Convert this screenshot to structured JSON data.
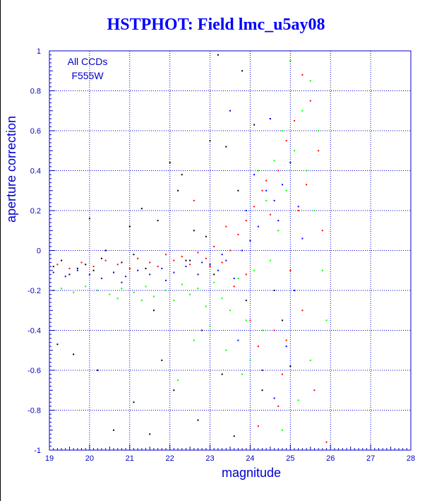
{
  "chart_data": {
    "type": "scatter",
    "title": "HSTPHOT: Field lmc_u5ay08",
    "xlabel": "magnitude",
    "ylabel": "aperture correction",
    "xlim": [
      19,
      28
    ],
    "ylim": [
      -1,
      1
    ],
    "x_ticks": [
      "19",
      "20",
      "21",
      "22",
      "23",
      "24",
      "25",
      "26",
      "27",
      "28"
    ],
    "y_ticks": [
      "-1",
      "-0.8",
      "-0.6",
      "-0.4",
      "-0.2",
      "0",
      "0.2",
      "0.4",
      "0.6",
      "0.8",
      "1"
    ],
    "grid": true,
    "annotations": [
      "All CCDs",
      "F555W"
    ],
    "colors": {
      "axis": "#0000cc",
      "grid": "#0000cc",
      "title": "#0000ff"
    },
    "series": [
      {
        "color": "#000000",
        "points": [
          [
            19.1,
            -0.08
          ],
          [
            19.3,
            -0.05
          ],
          [
            19.5,
            -0.12
          ],
          [
            19.7,
            -0.09
          ],
          [
            19.9,
            -0.07
          ],
          [
            20.0,
            0.16
          ],
          [
            20.1,
            -0.1
          ],
          [
            20.3,
            -0.04
          ],
          [
            20.4,
            0.0
          ],
          [
            20.6,
            -0.11
          ],
          [
            20.8,
            -0.06
          ],
          [
            21.0,
            0.12
          ],
          [
            21.1,
            -0.02
          ],
          [
            21.3,
            0.21
          ],
          [
            21.4,
            -0.09
          ],
          [
            21.6,
            -0.3
          ],
          [
            21.7,
            0.15
          ],
          [
            21.8,
            -0.55
          ],
          [
            22.0,
            0.44
          ],
          [
            22.1,
            -0.7
          ],
          [
            22.2,
            0.3
          ],
          [
            22.3,
            0.38
          ],
          [
            22.4,
            -0.05
          ],
          [
            22.6,
            0.1
          ],
          [
            22.7,
            -0.85
          ],
          [
            22.8,
            -0.4
          ],
          [
            22.9,
            0.07
          ],
          [
            23.0,
            0.55
          ],
          [
            23.2,
            0.98
          ],
          [
            23.3,
            -0.62
          ],
          [
            23.4,
            0.52
          ],
          [
            23.6,
            -0.93
          ],
          [
            23.7,
            0.3
          ],
          [
            23.8,
            0.9
          ],
          [
            23.9,
            -0.25
          ],
          [
            24.1,
            0.63
          ],
          [
            24.3,
            -0.7
          ],
          [
            24.5,
            0.66
          ],
          [
            24.8,
            -0.35
          ],
          [
            25.0,
            -0.58
          ],
          [
            19.2,
            -0.47
          ],
          [
            19.6,
            -0.52
          ],
          [
            20.2,
            -0.6
          ],
          [
            20.6,
            -0.9
          ],
          [
            21.1,
            -0.76
          ],
          [
            21.5,
            -0.92
          ],
          [
            22.5,
            -0.05
          ],
          [
            23.1,
            -0.12
          ],
          [
            24.0,
            0.05
          ],
          [
            24.6,
            -0.2
          ]
        ]
      },
      {
        "color": "#ff0000",
        "points": [
          [
            19.2,
            -0.07
          ],
          [
            19.5,
            -0.09
          ],
          [
            19.8,
            -0.06
          ],
          [
            20.1,
            -0.08
          ],
          [
            20.4,
            -0.05
          ],
          [
            20.7,
            -0.07
          ],
          [
            21.0,
            -0.09
          ],
          [
            21.2,
            -0.04
          ],
          [
            21.5,
            -0.06
          ],
          [
            21.7,
            -0.08
          ],
          [
            21.9,
            -0.02
          ],
          [
            22.1,
            -0.05
          ],
          [
            22.3,
            -0.03
          ],
          [
            22.5,
            -0.07
          ],
          [
            22.7,
            -0.01
          ],
          [
            22.9,
            -0.04
          ],
          [
            23.1,
            0.02
          ],
          [
            23.3,
            -0.06
          ],
          [
            23.5,
            0.0
          ],
          [
            23.7,
            0.08
          ],
          [
            23.9,
            0.15
          ],
          [
            24.1,
            0.22
          ],
          [
            24.3,
            0.3
          ],
          [
            24.5,
            0.18
          ],
          [
            24.7,
            0.4
          ],
          [
            24.9,
            0.55
          ],
          [
            25.1,
            0.65
          ],
          [
            25.3,
            0.88
          ],
          [
            25.5,
            0.75
          ],
          [
            25.7,
            0.5
          ],
          [
            23.6,
            -0.18
          ],
          [
            24.0,
            -0.35
          ],
          [
            24.2,
            -0.48
          ],
          [
            24.6,
            -0.4
          ],
          [
            24.8,
            -0.62
          ],
          [
            25.0,
            -0.1
          ],
          [
            25.2,
            0.2
          ],
          [
            25.4,
            0.33
          ],
          [
            25.8,
            0.1
          ],
          [
            25.9,
            -0.96
          ],
          [
            24.4,
            0.35
          ],
          [
            23.9,
            -0.12
          ],
          [
            23.4,
            0.12
          ],
          [
            23.0,
            -0.08
          ],
          [
            22.6,
            0.25
          ],
          [
            24.2,
            -0.88
          ],
          [
            25.6,
            -0.7
          ],
          [
            24.9,
            -0.45
          ],
          [
            25.3,
            -0.3
          ],
          [
            24.7,
            -0.78
          ]
        ]
      },
      {
        "color": "#0000ff",
        "points": [
          [
            19.1,
            -0.11
          ],
          [
            19.4,
            -0.13
          ],
          [
            19.7,
            -0.1
          ],
          [
            20.0,
            -0.12
          ],
          [
            20.3,
            -0.14
          ],
          [
            20.6,
            -0.11
          ],
          [
            20.9,
            -0.13
          ],
          [
            21.2,
            -0.1
          ],
          [
            21.5,
            -0.12
          ],
          [
            21.8,
            -0.09
          ],
          [
            22.1,
            -0.11
          ],
          [
            22.4,
            -0.08
          ],
          [
            22.7,
            -0.12
          ],
          [
            23.0,
            -0.07
          ],
          [
            23.2,
            -0.1
          ],
          [
            23.4,
            -0.05
          ],
          [
            23.6,
            -0.14
          ],
          [
            23.8,
            0.0
          ],
          [
            24.0,
            0.05
          ],
          [
            24.2,
            0.12
          ],
          [
            24.4,
            0.3
          ],
          [
            24.6,
            0.25
          ],
          [
            24.8,
            0.33
          ],
          [
            25.0,
            0.44
          ],
          [
            25.2,
            0.22
          ],
          [
            23.5,
            0.7
          ],
          [
            24.5,
            0.66
          ],
          [
            23.7,
            -0.45
          ],
          [
            24.3,
            -0.6
          ],
          [
            25.1,
            -0.2
          ],
          [
            24.9,
            -0.48
          ],
          [
            23.9,
            0.2
          ],
          [
            24.1,
            0.38
          ],
          [
            24.7,
            0.15
          ],
          [
            25.3,
            0.06
          ],
          [
            22.8,
            -0.06
          ],
          [
            23.3,
            -0.02
          ],
          [
            21.9,
            -0.15
          ],
          [
            20.8,
            -0.16
          ],
          [
            24.6,
            -0.74
          ]
        ]
      },
      {
        "color": "#00ff00",
        "points": [
          [
            19.1,
            -0.2
          ],
          [
            19.3,
            -0.19
          ],
          [
            19.6,
            -0.21
          ],
          [
            19.9,
            -0.18
          ],
          [
            20.2,
            -0.2
          ],
          [
            20.5,
            -0.22
          ],
          [
            20.8,
            -0.19
          ],
          [
            21.1,
            -0.21
          ],
          [
            21.4,
            -0.18
          ],
          [
            21.6,
            -0.23
          ],
          [
            21.9,
            -0.2
          ],
          [
            22.1,
            -0.25
          ],
          [
            22.3,
            -0.17
          ],
          [
            22.5,
            -0.22
          ],
          [
            22.7,
            -0.19
          ],
          [
            22.9,
            -0.28
          ],
          [
            23.1,
            -0.16
          ],
          [
            23.3,
            -0.24
          ],
          [
            23.5,
            -0.3
          ],
          [
            23.7,
            -0.14
          ],
          [
            23.9,
            -0.35
          ],
          [
            24.1,
            -0.1
          ],
          [
            24.3,
            -0.4
          ],
          [
            24.5,
            -0.05
          ],
          [
            24.7,
            0.1
          ],
          [
            24.9,
            0.3
          ],
          [
            25.1,
            0.5
          ],
          [
            25.3,
            0.7
          ],
          [
            25.5,
            0.85
          ],
          [
            25.7,
            0.6
          ],
          [
            24.2,
            0.4
          ],
          [
            24.4,
            0.25
          ],
          [
            24.6,
            0.45
          ],
          [
            24.8,
            0.6
          ],
          [
            25.0,
            0.95
          ],
          [
            25.4,
            0.4
          ],
          [
            25.6,
            0.2
          ],
          [
            25.8,
            -0.1
          ],
          [
            25.9,
            -0.35
          ],
          [
            24.0,
            -0.55
          ],
          [
            23.8,
            -0.62
          ],
          [
            23.4,
            -0.5
          ],
          [
            22.2,
            -0.65
          ],
          [
            22.6,
            -0.45
          ],
          [
            25.2,
            -0.75
          ],
          [
            25.5,
            -0.55
          ],
          [
            24.8,
            -0.9
          ],
          [
            23.0,
            -0.38
          ],
          [
            21.3,
            -0.25
          ],
          [
            20.7,
            -0.24
          ]
        ]
      }
    ]
  }
}
